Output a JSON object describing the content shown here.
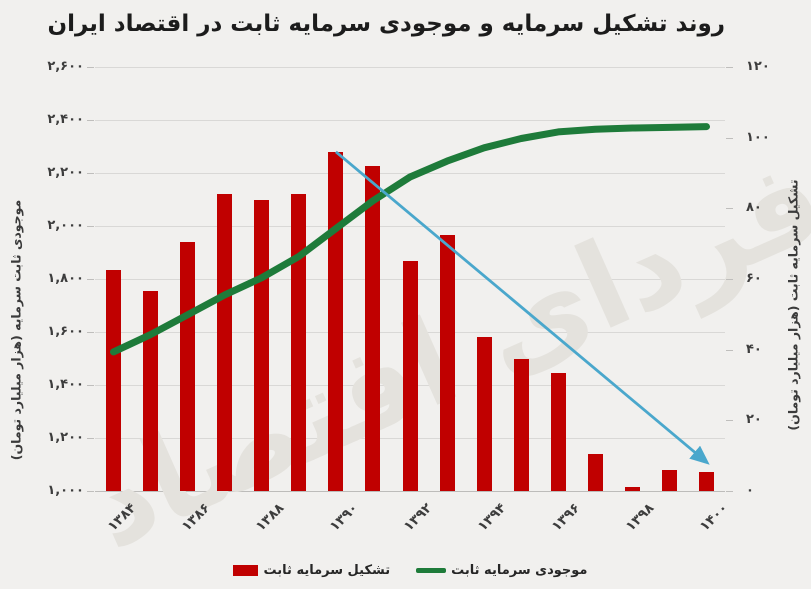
{
  "title": "روند تشکیل سرمایه و موجودی سرمایه ثابت در اقتصاد ایران",
  "watermark": "فردای اقتصاد",
  "colors": {
    "background": "#f1f0ee",
    "bar": "#c00000",
    "line": "#1e7b3a",
    "trend": "#4aa7cc",
    "grid": "#d9d8d6",
    "text": "#3d3d3d"
  },
  "chart_data": {
    "type": "bar+line",
    "categories_years": [
      1384,
      1385,
      1386,
      1387,
      1388,
      1389,
      1390,
      1391,
      1392,
      1393,
      1394,
      1395,
      1396,
      1397,
      1398,
      1399,
      1400
    ],
    "x_ticks": [
      {
        "year": 1384,
        "label": "۱۳۸۴"
      },
      {
        "year": 1386,
        "label": "۱۳۸۶"
      },
      {
        "year": 1388,
        "label": "۱۳۸۸"
      },
      {
        "year": 1390,
        "label": "۱۳۹۰"
      },
      {
        "year": 1392,
        "label": "۱۳۹۲"
      },
      {
        "year": 1394,
        "label": "۱۳۹۴"
      },
      {
        "year": 1396,
        "label": "۱۳۹۶"
      },
      {
        "year": 1398,
        "label": "۱۳۹۸"
      },
      {
        "year": 1400,
        "label": "۱۴۰۰"
      }
    ],
    "series": [
      {
        "name": "تشکیل سرمایه ثابت",
        "type": "bar",
        "axis": "right",
        "color": "#c00000",
        "values": [
          62.5,
          56.5,
          70.5,
          84,
          82.5,
          84,
          96,
          92,
          65,
          72.5,
          43.5,
          37.5,
          33.5,
          10.5,
          1.2,
          6,
          5.3
        ]
      },
      {
        "name": "موجودی سرمایه ثابت",
        "type": "line",
        "axis": "left",
        "color": "#1e7b3a",
        "values": [
          1525,
          1590,
          1665,
          1740,
          1805,
          1885,
          1990,
          2095,
          2185,
          2245,
          2295,
          2330,
          2355,
          2365,
          2370,
          2372,
          2375
        ]
      }
    ],
    "trend_annotation": {
      "color": "#4aa7cc",
      "from": {
        "year": 1390,
        "right_value": 96
      },
      "to": {
        "year": 1400,
        "right_value": 8.2
      }
    },
    "left_axis": {
      "title": "موجودی ثابت سرمایه (هزار میلیارد تومان)",
      "min": 1000,
      "max": 2600,
      "tick_step": 200,
      "ticks": [
        {
          "value": 2600,
          "label": "۲,۶۰۰"
        },
        {
          "value": 2400,
          "label": "۲,۴۰۰"
        },
        {
          "value": 2200,
          "label": "۲,۲۰۰"
        },
        {
          "value": 2000,
          "label": "۲,۰۰۰"
        },
        {
          "value": 1800,
          "label": "۱,۸۰۰"
        },
        {
          "value": 1600,
          "label": "۱,۶۰۰"
        },
        {
          "value": 1400,
          "label": "۱,۴۰۰"
        },
        {
          "value": 1200,
          "label": "۱,۲۰۰"
        },
        {
          "value": 1000,
          "label": "۱,۰۰۰"
        }
      ]
    },
    "right_axis": {
      "title": "تشکیل سرمایه ثابت (هزار میلیارد تومان)",
      "min": 0,
      "max": 120,
      "tick_step": 20,
      "ticks": [
        {
          "value": 120,
          "label": "۱۲۰"
        },
        {
          "value": 100,
          "label": "۱۰۰"
        },
        {
          "value": 80,
          "label": "۸۰"
        },
        {
          "value": 60,
          "label": "۶۰"
        },
        {
          "value": 40,
          "label": "۴۰"
        },
        {
          "value": 20,
          "label": "۲۰"
        },
        {
          "value": 0,
          "label": "۰"
        }
      ]
    },
    "legend": [
      {
        "label": "تشکیل سرمایه ثابت",
        "swatch": "bar",
        "color": "#c00000"
      },
      {
        "label": "موجودی سرمایه ثابت",
        "swatch": "line",
        "color": "#1e7b3a"
      }
    ],
    "grid": true,
    "legend_position": "bottom"
  }
}
